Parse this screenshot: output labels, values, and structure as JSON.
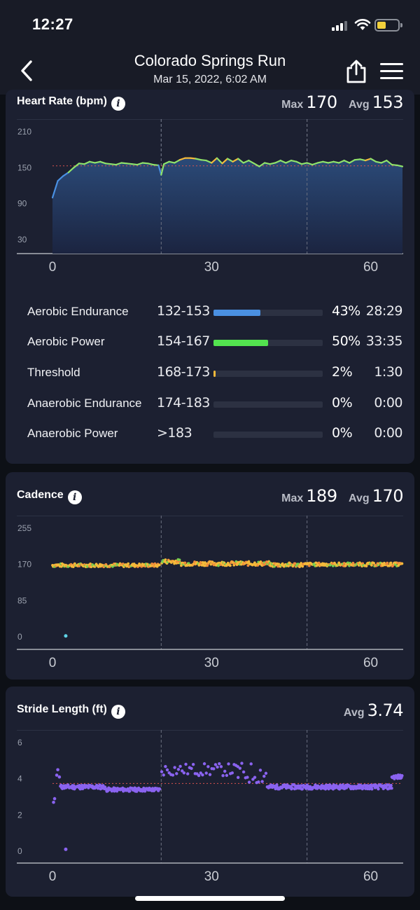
{
  "status_bar": {
    "time": "12:27"
  },
  "header": {
    "title": "Colorado Springs Run",
    "subtitle": "Mar 15, 2022, 6:02 AM",
    "back_icon": "chevron-left-icon",
    "share_icon": "share-icon",
    "menu_icon": "hamburger-menu-icon"
  },
  "heart_rate": {
    "title": "Heart Rate (bpm)",
    "max_label": "Max",
    "max_value": "170",
    "avg_label": "Avg",
    "avg_value": "153",
    "zones": [
      {
        "name": "Aerobic Endurance",
        "range": "132-153",
        "percent": "43%",
        "time": "28:29",
        "fraction": 0.43,
        "color": "#4a90e2"
      },
      {
        "name": "Aerobic Power",
        "range": "154-167",
        "percent": "50%",
        "time": "33:35",
        "fraction": 0.5,
        "color": "#53e34f"
      },
      {
        "name": "Threshold",
        "range": "168-173",
        "percent": "2%",
        "time": "1:30",
        "fraction": 0.02,
        "color": "#f5b93a"
      },
      {
        "name": "Anaerobic Endurance",
        "range": "174-183",
        "percent": "0%",
        "time": "0:00",
        "fraction": 0,
        "color": "#f08b3a"
      },
      {
        "name": "Anaerobic Power",
        "range": ">183",
        "percent": "0%",
        "time": "0:00",
        "fraction": 0,
        "color": "#e5484d"
      }
    ]
  },
  "cadence": {
    "title": "Cadence",
    "max_label": "Max",
    "max_value": "189",
    "avg_label": "Avg",
    "avg_value": "170"
  },
  "stride": {
    "title": "Stride Length (ft)",
    "avg_label": "Avg",
    "avg_value": "3.74"
  },
  "chart_data": [
    {
      "name": "heart-rate",
      "type": "area",
      "y_ticks": [
        "210",
        "150",
        "90",
        "30"
      ],
      "x_ticks": [
        "0",
        "30",
        "60"
      ],
      "ylim": [
        30,
        210
      ],
      "xlim": [
        0,
        66
      ],
      "average": 153,
      "lap_markers": [
        20.5,
        48
      ],
      "series_x": [
        0,
        1,
        2,
        3,
        4,
        5,
        6,
        7,
        8,
        9,
        10,
        11,
        12,
        13,
        14,
        15,
        16,
        17,
        18,
        19,
        20,
        20.5,
        21,
        22,
        23,
        24,
        25,
        26,
        27,
        28,
        29,
        30,
        31,
        32,
        33,
        34,
        35,
        36,
        37,
        38,
        39,
        40,
        41,
        42,
        43,
        44,
        45,
        46,
        47,
        48,
        49,
        50,
        51,
        52,
        53,
        54,
        55,
        56,
        57,
        58,
        59,
        60,
        61,
        62,
        63,
        64,
        65,
        66
      ],
      "series_y": [
        100,
        128,
        136,
        142,
        150,
        157,
        156,
        160,
        158,
        160,
        157,
        156,
        155,
        158,
        157,
        156,
        155,
        158,
        157,
        155,
        154,
        138,
        156,
        160,
        158,
        163,
        166,
        166,
        165,
        163,
        162,
        158,
        166,
        157,
        165,
        160,
        165,
        158,
        162,
        157,
        152,
        158,
        156,
        158,
        162,
        158,
        162,
        160,
        156,
        158,
        155,
        158,
        160,
        158,
        160,
        158,
        162,
        158,
        163,
        164,
        162,
        165,
        160,
        158,
        162,
        155,
        154,
        152
      ],
      "zone_colors": {
        "below_132": "#4a90e2",
        "132_153": "#4a90e2",
        "154_167": "#8fe36a",
        "168_173": "#f5b93a"
      }
    },
    {
      "name": "cadence",
      "type": "scatter",
      "y_ticks": [
        "255",
        "170",
        "85",
        "0"
      ],
      "x_ticks": [
        "0",
        "30",
        "60"
      ],
      "ylim": [
        0,
        255
      ],
      "xlim": [
        0,
        66
      ],
      "lap_markers": [
        20.5,
        48
      ],
      "outlier": {
        "x": 2.5,
        "y": 2
      },
      "segments": [
        {
          "from": 0,
          "to": 20.3,
          "center": 168,
          "spread": 4
        },
        {
          "from": 20.6,
          "to": 24,
          "center": 177,
          "spread": 5
        },
        {
          "from": 24,
          "to": 41,
          "center": 172,
          "spread": 5
        },
        {
          "from": 41,
          "to": 48,
          "center": 169,
          "spread": 5
        },
        {
          "from": 48,
          "to": 66,
          "center": 170,
          "spread": 4
        }
      ],
      "colors": [
        "#f5b93a",
        "#f08b3a",
        "#7ad04f"
      ]
    },
    {
      "name": "stride-length",
      "type": "scatter",
      "y_ticks": [
        "6",
        "4",
        "2",
        "0"
      ],
      "x_ticks": [
        "0",
        "30",
        "60"
      ],
      "ylim": [
        0,
        6
      ],
      "xlim": [
        0,
        66
      ],
      "average": 3.74,
      "lap_markers": [
        20.5,
        48
      ],
      "start_points": [
        {
          "x": 0.2,
          "y": 2.7
        },
        {
          "x": 0.4,
          "y": 2.9
        },
        {
          "x": 0.8,
          "y": 4.2
        },
        {
          "x": 1.0,
          "y": 4.5
        },
        {
          "x": 1.3,
          "y": 4.1
        }
      ],
      "outlier": {
        "x": 2.5,
        "y": 0.1
      },
      "segments": [
        {
          "from": 1.5,
          "to": 10,
          "center": 3.55,
          "spread": 0.12
        },
        {
          "from": 10,
          "to": 20.3,
          "center": 3.4,
          "spread": 0.1
        },
        {
          "from": 20.6,
          "to": 35,
          "center": 4.5,
          "spread": 0.35
        },
        {
          "from": 35,
          "to": 40.5,
          "center": 4.3,
          "spread": 0.6
        },
        {
          "from": 40.5,
          "to": 48,
          "center": 3.55,
          "spread": 0.12
        },
        {
          "from": 48,
          "to": 64,
          "center": 3.55,
          "spread": 0.12
        },
        {
          "from": 64,
          "to": 66,
          "center": 4.1,
          "spread": 0.12
        }
      ],
      "color": "#8a63f0"
    }
  ]
}
